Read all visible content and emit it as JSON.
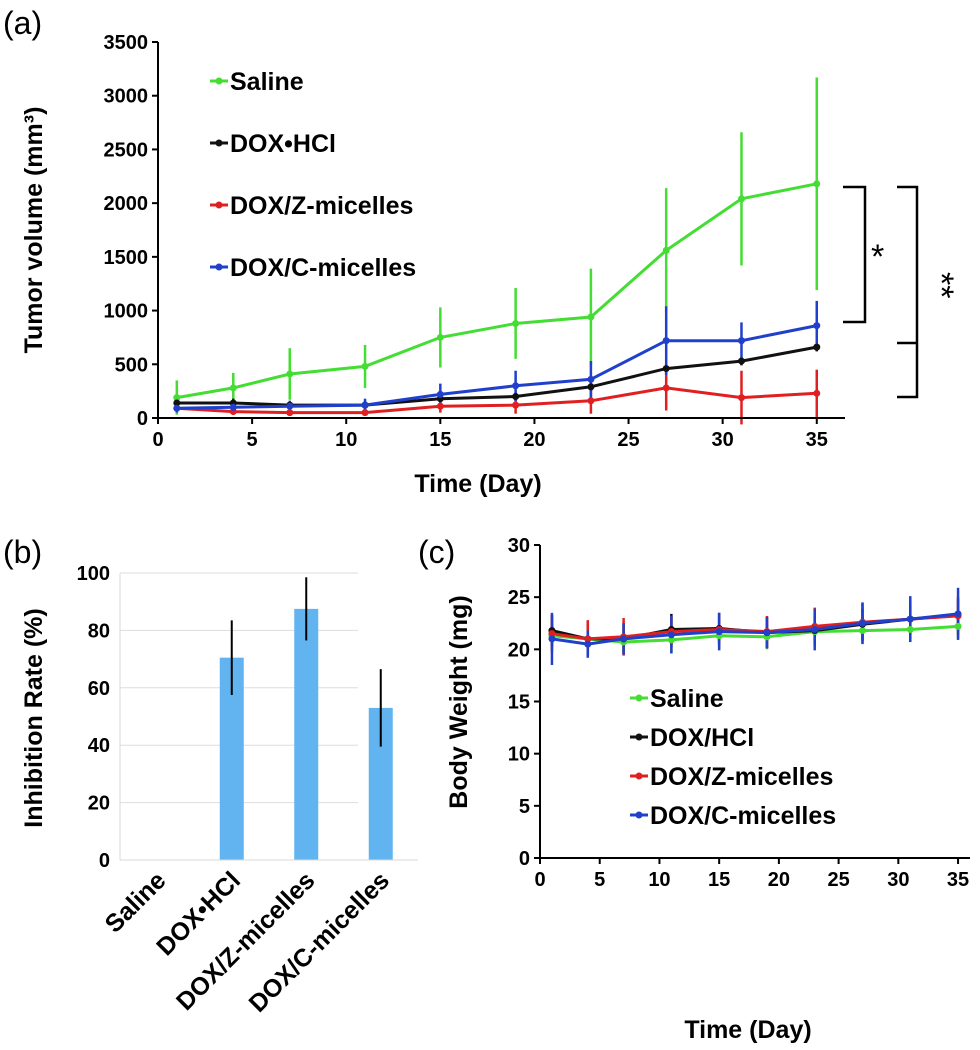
{
  "colors": {
    "Saline": "#44dd33",
    "DOX•HCl": "#111111",
    "DOX/Z-micelles": "#e02020",
    "DOX/C-micelles": "#2040cc",
    "bar": "#62b4f0"
  },
  "chart_data": [
    {
      "id": "a",
      "panel_label": "(a)",
      "type": "line",
      "xlabel": "Time (Day)",
      "ylabel": "Tumor volume  (mm³)",
      "xlim": [
        0,
        36.5
      ],
      "ylim": [
        0,
        3500
      ],
      "xticks": [
        0,
        5,
        10,
        15,
        20,
        25,
        30,
        35
      ],
      "yticks": [
        0,
        500,
        1000,
        1500,
        2000,
        2500,
        3000,
        3500
      ],
      "x": [
        1,
        4,
        7,
        11,
        15,
        19,
        23,
        27,
        31,
        35
      ],
      "series": [
        {
          "name": "Saline",
          "values": [
            190,
            280,
            410,
            480,
            750,
            880,
            940,
            1560,
            2040,
            2180
          ],
          "errors": [
            160,
            140,
            240,
            200,
            280,
            330,
            450,
            580,
            620,
            990
          ]
        },
        {
          "name": "DOX•HCl",
          "values": [
            140,
            140,
            120,
            120,
            180,
            200,
            290,
            460,
            530,
            660
          ],
          "errors": [
            40,
            40,
            40,
            40,
            40,
            40,
            40,
            40,
            40,
            40
          ]
        },
        {
          "name": "DOX/Z-micelles",
          "values": [
            90,
            60,
            50,
            50,
            110,
            120,
            160,
            280,
            190,
            230
          ],
          "errors": [
            30,
            30,
            30,
            30,
            60,
            80,
            120,
            210,
            250,
            220
          ]
        },
        {
          "name": "DOX/C-micelles",
          "values": [
            90,
            100,
            110,
            120,
            220,
            300,
            360,
            720,
            720,
            860
          ],
          "errors": [
            40,
            40,
            50,
            60,
            100,
            140,
            170,
            320,
            170,
            230
          ]
        }
      ],
      "annotations": [
        "*",
        "**"
      ],
      "legend_position": "top-left"
    },
    {
      "id": "b",
      "panel_label": "(b)",
      "type": "bar",
      "ylabel": "Inhibition Rate (%)",
      "ylim": [
        0,
        100
      ],
      "yticks": [
        0,
        20,
        40,
        60,
        80,
        100
      ],
      "categories": [
        "Saline",
        "DOX•HCl",
        "DOX/Z-micelles",
        "DOX/C-micelles"
      ],
      "values": [
        0,
        70.5,
        87.5,
        53
      ],
      "errors": [
        0,
        13,
        11,
        13.5
      ],
      "grid": true
    },
    {
      "id": "c",
      "panel_label": "(c)",
      "type": "line",
      "xlabel": "Time (Day)",
      "ylabel": "Body Weight (mg)",
      "xlim": [
        0,
        36
      ],
      "ylim": [
        0,
        30
      ],
      "xticks": [
        0,
        5,
        10,
        15,
        20,
        25,
        30,
        35
      ],
      "yticks": [
        0,
        5,
        10,
        15,
        20,
        25,
        30
      ],
      "x": [
        1,
        4,
        7,
        11,
        15,
        19,
        23,
        27,
        31,
        35
      ],
      "series": [
        {
          "name": "Saline",
          "values": [
            21.3,
            21.0,
            20.7,
            20.9,
            21.3,
            21.2,
            21.7,
            21.8,
            21.9,
            22.2
          ],
          "errors": [
            1.2,
            1.2,
            1.2,
            1.2,
            1.2,
            1.2,
            1.2,
            1.2,
            1.2,
            1.2
          ]
        },
        {
          "name": "DOX/HCl",
          "values": [
            21.8,
            21.0,
            21.0,
            21.9,
            22.0,
            21.6,
            21.8,
            22.4,
            22.9,
            23.3
          ],
          "errors": [
            1.5,
            1.5,
            1.5,
            1.5,
            1.5,
            1.5,
            1.5,
            1.5,
            1.5,
            1.5
          ]
        },
        {
          "name": "DOX/Z-micelles",
          "values": [
            21.5,
            21.0,
            21.2,
            21.7,
            21.9,
            21.7,
            22.2,
            22.6,
            22.9,
            23.2
          ],
          "errors": [
            1.8,
            1.8,
            1.8,
            1.5,
            1.5,
            1.5,
            1.8,
            1.8,
            1.8,
            1.8
          ]
        },
        {
          "name": "DOX/C-micelles",
          "values": [
            21.0,
            20.5,
            21.0,
            21.4,
            21.7,
            21.6,
            21.9,
            22.5,
            22.9,
            23.4
          ],
          "errors": [
            2.5,
            1.3,
            1.5,
            1.8,
            1.8,
            1.5,
            2.0,
            2.0,
            2.2,
            2.5
          ]
        }
      ],
      "legend_position": "center"
    }
  ]
}
